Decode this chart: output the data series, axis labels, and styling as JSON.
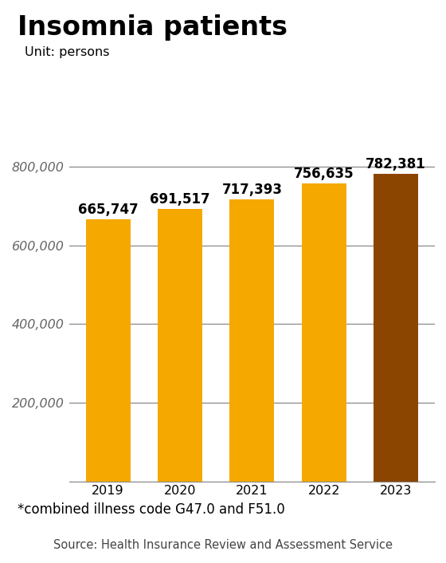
{
  "title": "Insomnia patients",
  "unit_label": "Unit: persons",
  "categories": [
    "2019",
    "2020",
    "2021",
    "2022",
    "2023"
  ],
  "values": [
    665747,
    691517,
    717393,
    756635,
    782381
  ],
  "bar_colors": [
    "#F5A800",
    "#F5A800",
    "#F5A800",
    "#F5A800",
    "#8B4500"
  ],
  "value_labels": [
    "665,747",
    "691,517",
    "717,393",
    "756,635",
    "782,381"
  ],
  "yticks": [
    0,
    200000,
    400000,
    600000,
    800000
  ],
  "ytick_labels": [
    "",
    "200,000",
    "400,000",
    "600,000",
    "800,000"
  ],
  "ylim": [
    0,
    880000
  ],
  "footnote": "*combined illness code G47.0 and F51.0",
  "source": "Source: Health Insurance Review and Assessment Service",
  "background_color": "#ffffff",
  "grid_color": "#888888",
  "title_fontsize": 24,
  "unit_fontsize": 11.5,
  "value_fontsize": 12,
  "tick_fontsize": 11.5,
  "footnote_fontsize": 12,
  "source_fontsize": 10.5
}
